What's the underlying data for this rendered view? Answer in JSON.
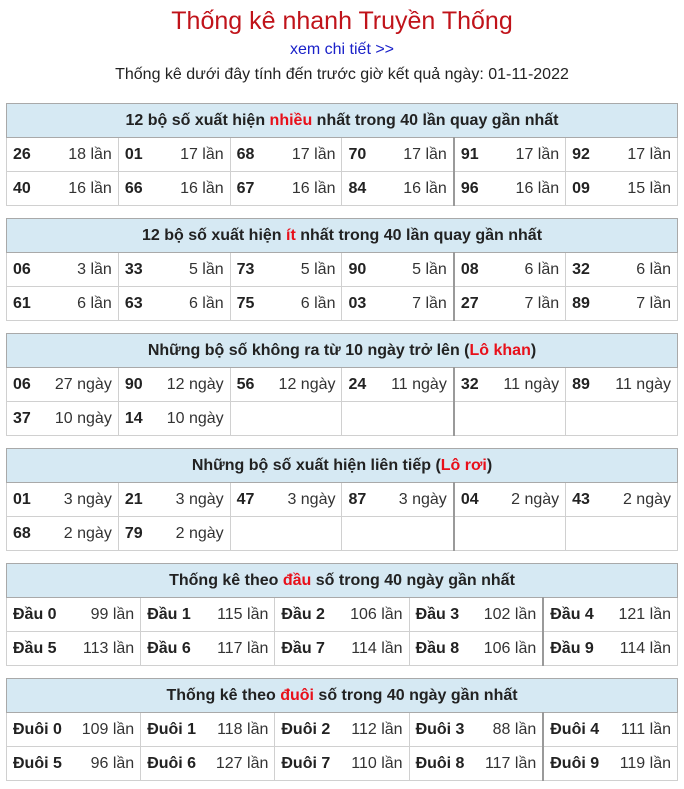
{
  "header": {
    "title": "Thống kê nhanh Truyền Thống",
    "link": "xem chi tiết >>",
    "subtitle": "Thống kê dưới đây tính đến trước giờ kết quả ngày: 01-11-2022"
  },
  "most": {
    "title_pre": "12 bộ số xuất hiện ",
    "title_hl": "nhiều",
    "title_post": " nhất trong 40 lần quay gần nhất",
    "rows": [
      [
        [
          "26",
          "18 lần"
        ],
        [
          "01",
          "17 lần"
        ],
        [
          "68",
          "17 lần"
        ],
        [
          "70",
          "17 lần"
        ],
        [
          "91",
          "17 lần"
        ],
        [
          "92",
          "17 lần"
        ]
      ],
      [
        [
          "40",
          "16 lần"
        ],
        [
          "66",
          "16 lần"
        ],
        [
          "67",
          "16 lần"
        ],
        [
          "84",
          "16 lần"
        ],
        [
          "96",
          "16 lần"
        ],
        [
          "09",
          "15 lần"
        ]
      ]
    ]
  },
  "least": {
    "title_pre": "12 bộ số xuất hiện ",
    "title_hl": "ít",
    "title_post": " nhất trong 40 lần quay gần nhất",
    "rows": [
      [
        [
          "06",
          "3 lần"
        ],
        [
          "33",
          "5 lần"
        ],
        [
          "73",
          "5 lần"
        ],
        [
          "90",
          "5 lần"
        ],
        [
          "08",
          "6 lần"
        ],
        [
          "32",
          "6 lần"
        ]
      ],
      [
        [
          "61",
          "6 lần"
        ],
        [
          "63",
          "6 lần"
        ],
        [
          "75",
          "6 lần"
        ],
        [
          "03",
          "7 lần"
        ],
        [
          "27",
          "7 lần"
        ],
        [
          "89",
          "7 lần"
        ]
      ]
    ]
  },
  "khan": {
    "title_pre": "Những bộ số không ra từ 10 ngày trở lên (",
    "title_hl": "Lô khan",
    "title_post": ")",
    "rows": [
      [
        [
          "06",
          "27 ngày"
        ],
        [
          "90",
          "12 ngày"
        ],
        [
          "56",
          "12 ngày"
        ],
        [
          "24",
          "11 ngày"
        ],
        [
          "32",
          "11 ngày"
        ],
        [
          "89",
          "11 ngày"
        ]
      ],
      [
        [
          "37",
          "10 ngày"
        ],
        [
          "14",
          "10 ngày"
        ],
        [
          "",
          ""
        ],
        [
          "",
          ""
        ],
        [
          "",
          ""
        ],
        [
          "",
          ""
        ]
      ]
    ]
  },
  "roi": {
    "title_pre": "Những bộ số xuất hiện liên tiếp (",
    "title_hl": "Lô rơi",
    "title_post": ")",
    "rows": [
      [
        [
          "01",
          "3 ngày"
        ],
        [
          "21",
          "3 ngày"
        ],
        [
          "47",
          "3 ngày"
        ],
        [
          "87",
          "3 ngày"
        ],
        [
          "04",
          "2 ngày"
        ],
        [
          "43",
          "2 ngày"
        ]
      ],
      [
        [
          "68",
          "2 ngày"
        ],
        [
          "79",
          "2 ngày"
        ],
        [
          "",
          ""
        ],
        [
          "",
          ""
        ],
        [
          "",
          ""
        ],
        [
          "",
          ""
        ]
      ]
    ]
  },
  "dau": {
    "title_pre": "Thống kê theo ",
    "title_hl": "đầu",
    "title_post": " số trong 40 ngày gần nhất",
    "rows": [
      [
        [
          "Đầu 0",
          "99 lần"
        ],
        [
          "Đầu 1",
          "115 lần"
        ],
        [
          "Đầu 2",
          "106 lần"
        ],
        [
          "Đầu 3",
          "102 lần"
        ],
        [
          "Đầu 4",
          "121 lần"
        ]
      ],
      [
        [
          "Đầu 5",
          "113 lần"
        ],
        [
          "Đầu 6",
          "117 lần"
        ],
        [
          "Đầu 7",
          "114 lần"
        ],
        [
          "Đầu 8",
          "106 lần"
        ],
        [
          "Đầu 9",
          "114 lần"
        ]
      ]
    ]
  },
  "duoi": {
    "title_pre": "Thống kê theo ",
    "title_hl": "đuôi",
    "title_post": " số trong 40 ngày gần nhất",
    "rows": [
      [
        [
          "Đuôi 0",
          "109 lần"
        ],
        [
          "Đuôi 1",
          "118 lần"
        ],
        [
          "Đuôi 2",
          "112 lần"
        ],
        [
          "Đuôi 3",
          "88 lần"
        ],
        [
          "Đuôi 4",
          "111 lần"
        ]
      ],
      [
        [
          "Đuôi 5",
          "96 lần"
        ],
        [
          "Đuôi 6",
          "127 lần"
        ],
        [
          "Đuôi 7",
          "110 lần"
        ],
        [
          "Đuôi 8",
          "117 lần"
        ],
        [
          "Đuôi 9",
          "119 lần"
        ]
      ]
    ]
  },
  "colors": {
    "title": "#c0131a",
    "link": "#1a21c9",
    "highlight": "#e8101a",
    "header_bg": "#d6e9f3"
  }
}
